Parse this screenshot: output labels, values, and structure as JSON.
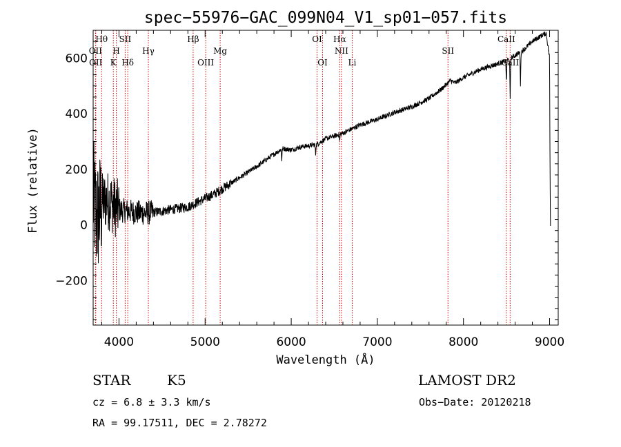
{
  "chart_data": {
    "type": "line",
    "title": "spec−55976−GAC_099N04_V1_sp01−057.fits",
    "xlabel": "Wavelength (Å)",
    "ylabel": "Flux (relative)",
    "xlim": [
      3700,
      9100
    ],
    "ylim": [
      -360,
      700
    ],
    "x_ticks": [
      4000,
      5000,
      6000,
      7000,
      8000,
      9000
    ],
    "y_ticks": [
      -200,
      0,
      200,
      400,
      600
    ],
    "grid": false,
    "series": [
      {
        "color": "#000000",
        "anchors": [
          [
            3700,
            100
          ],
          [
            3720,
            60
          ],
          [
            3740,
            20
          ],
          [
            3770,
            40
          ],
          [
            3800,
            80
          ],
          [
            3850,
            90
          ],
          [
            3900,
            85
          ],
          [
            3950,
            65
          ],
          [
            4000,
            55
          ],
          [
            4050,
            52
          ],
          [
            4100,
            50
          ],
          [
            4200,
            45
          ],
          [
            4300,
            43
          ],
          [
            4400,
            45
          ],
          [
            4500,
            50
          ],
          [
            4600,
            55
          ],
          [
            4700,
            60
          ],
          [
            4800,
            65
          ],
          [
            4900,
            80
          ],
          [
            5000,
            95
          ],
          [
            5100,
            110
          ],
          [
            5200,
            130
          ],
          [
            5400,
            170
          ],
          [
            5600,
            210
          ],
          [
            5800,
            255
          ],
          [
            5900,
            275
          ],
          [
            6000,
            270
          ],
          [
            6100,
            280
          ],
          [
            6200,
            285
          ],
          [
            6300,
            290
          ],
          [
            6400,
            310
          ],
          [
            6500,
            320
          ],
          [
            6600,
            330
          ],
          [
            6800,
            360
          ],
          [
            7000,
            380
          ],
          [
            7200,
            405
          ],
          [
            7400,
            425
          ],
          [
            7600,
            455
          ],
          [
            7750,
            490
          ],
          [
            7850,
            520
          ],
          [
            7900,
            510
          ],
          [
            8000,
            530
          ],
          [
            8200,
            560
          ],
          [
            8400,
            580
          ],
          [
            8500,
            590
          ],
          [
            8600,
            610
          ],
          [
            8700,
            630
          ],
          [
            8800,
            660
          ],
          [
            8900,
            680
          ],
          [
            8960,
            690
          ],
          [
            9000,
            600
          ],
          [
            9005,
            200
          ],
          [
            9010,
            0
          ]
        ],
        "noise_regions": [
          {
            "x0": 3700,
            "x1": 3800,
            "amp": 220
          },
          {
            "x0": 3800,
            "x1": 4000,
            "amp": 110
          },
          {
            "x0": 4000,
            "x1": 4400,
            "amp": 45
          },
          {
            "x0": 4400,
            "x1": 5300,
            "amp": 18
          },
          {
            "x0": 5300,
            "x1": 9010,
            "amp": 9
          }
        ],
        "absorption_features": [
          {
            "x": 5890,
            "depth": 40
          },
          {
            "x": 6283,
            "depth": 35
          },
          {
            "x": 6563,
            "depth": 25
          },
          {
            "x": 8498,
            "depth": 80
          },
          {
            "x": 8542,
            "depth": 150
          },
          {
            "x": 8662,
            "depth": 120
          }
        ]
      }
    ],
    "spectral_lines": [
      {
        "label": "Hθ",
        "x": 3798,
        "row": 0
      },
      {
        "label": "OII",
        "x": 3727,
        "row": 1
      },
      {
        "label": "OII",
        "x": 3730,
        "row": 2
      },
      {
        "label": "H",
        "x": 3969,
        "row": 1
      },
      {
        "label": "K",
        "x": 3934,
        "row": 2
      },
      {
        "label": "SII",
        "x": 4072,
        "row": 0
      },
      {
        "label": "Hδ",
        "x": 4102,
        "row": 2
      },
      {
        "label": "Hγ",
        "x": 4341,
        "row": 1
      },
      {
        "label": "Hβ",
        "x": 4861,
        "row": 0
      },
      {
        "label": "OIII",
        "x": 5007,
        "row": 2
      },
      {
        "label": "Mg",
        "x": 5175,
        "row": 1
      },
      {
        "label": "OI",
        "x": 6300,
        "row": 0
      },
      {
        "label": "OI",
        "x": 6364,
        "row": 2
      },
      {
        "label": "Hα",
        "x": 6563,
        "row": 0
      },
      {
        "label": "NII",
        "x": 6583,
        "row": 1
      },
      {
        "label": "Li",
        "x": 6708,
        "row": 2
      },
      {
        "label": "SII",
        "x": 7820,
        "row": 1
      },
      {
        "label": "CaII",
        "x": 8498,
        "row": 0
      },
      {
        "label": "CaII",
        "x": 8542,
        "row": 2
      }
    ],
    "line_marker_color": "#cc0000"
  },
  "info": {
    "object_class": "STAR",
    "subclass": "K5",
    "survey": "LAMOST DR2",
    "redshift_text": "cz = 6.8 ± 3.3 km/s",
    "obs_date_text": "Obs−Date: 20120218",
    "coords_text": "RA =  99.17511, DEC =   2.78272"
  }
}
